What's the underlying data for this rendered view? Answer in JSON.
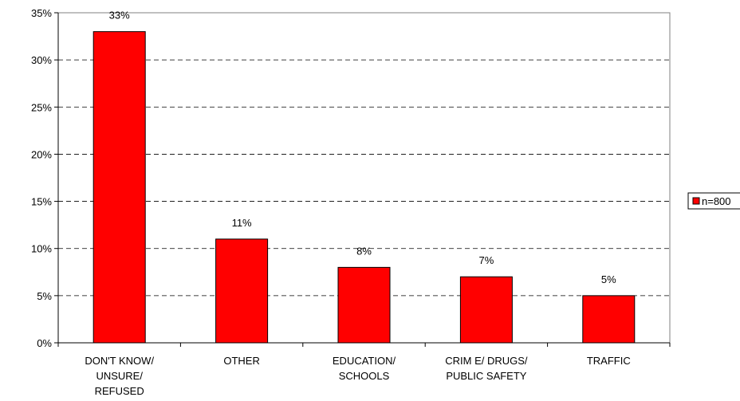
{
  "chart_data": {
    "type": "bar",
    "title": "",
    "xlabel": "",
    "ylabel": "",
    "categories": [
      [
        "DON'T KNOW/",
        "UNSURE/",
        "REFUSED"
      ],
      [
        "OTHER"
      ],
      [
        "EDUCATION/",
        "SCHOOLS"
      ],
      [
        "CRIM E/ DRUGS/",
        "PUBLIC SAFETY"
      ],
      [
        "TRAFFIC"
      ]
    ],
    "series": [
      {
        "name": "n=800",
        "values": [
          33,
          11,
          8,
          7,
          5
        ],
        "color": "#ff0000"
      }
    ],
    "data_labels": [
      "33%",
      "11%",
      "8%",
      "7%",
      "5%"
    ],
    "ylim": [
      0,
      35
    ],
    "yticks": [
      0,
      5,
      10,
      15,
      20,
      25,
      30,
      35
    ],
    "ytick_labels": [
      "0%",
      "5%",
      "10%",
      "15%",
      "20%",
      "25%",
      "30%",
      "35%"
    ],
    "grid": "dashed horizontal",
    "legend_position": "right"
  }
}
